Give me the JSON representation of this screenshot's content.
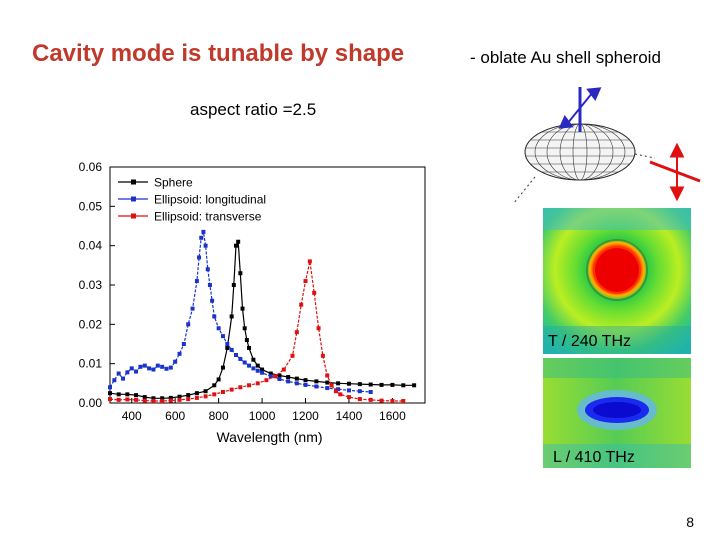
{
  "slide": {
    "title": "Cavity mode is tunable by shape",
    "subtitle": "-  oblate Au shell spheroid",
    "aspect_ratio_label": "aspect ratio =2.5",
    "page_number": "8"
  },
  "field_maps": {
    "top_label": "T / 240 THz",
    "bottom_label": "L / 410 THz"
  },
  "colors": {
    "title": "#c0392b",
    "sphere": "#000000",
    "longitudinal": "#1a33cc",
    "transverse": "#e01010",
    "arrow_blue": "#2a2ac0",
    "arrow_red": "#e01010"
  },
  "chart_data": {
    "type": "line",
    "title": "",
    "xlabel": "Wavelength (nm)",
    "ylabel": "",
    "xlim": [
      300,
      1750
    ],
    "ylim": [
      0,
      0.06
    ],
    "xticks": [
      400,
      600,
      800,
      1000,
      1200,
      1400,
      1600
    ],
    "yticks": [
      0.0,
      0.01,
      0.02,
      0.03,
      0.04,
      0.05,
      0.06
    ],
    "ytick_labels": [
      "0.00",
      "0.01",
      "0.02",
      "0.03",
      "0.04",
      "0.05",
      "0.06"
    ],
    "legend_position": "top-left",
    "series": [
      {
        "name": "Sphere",
        "color": "#000000",
        "x": [
          300,
          340,
          380,
          420,
          460,
          500,
          540,
          580,
          620,
          660,
          700,
          740,
          780,
          800,
          820,
          840,
          860,
          870,
          880,
          890,
          900,
          910,
          920,
          930,
          940,
          960,
          980,
          1000,
          1040,
          1080,
          1120,
          1160,
          1200,
          1250,
          1300,
          1350,
          1400,
          1450,
          1500,
          1550,
          1600,
          1650,
          1700
        ],
        "y": [
          0.0025,
          0.0022,
          0.0022,
          0.002,
          0.0015,
          0.0012,
          0.0012,
          0.0013,
          0.0016,
          0.002,
          0.0025,
          0.003,
          0.0045,
          0.006,
          0.009,
          0.014,
          0.022,
          0.03,
          0.04,
          0.041,
          0.033,
          0.024,
          0.019,
          0.016,
          0.014,
          0.011,
          0.0095,
          0.0085,
          0.0075,
          0.007,
          0.0066,
          0.0062,
          0.0058,
          0.0055,
          0.0052,
          0.005,
          0.0049,
          0.0048,
          0.0047,
          0.0046,
          0.0046,
          0.0045,
          0.0045
        ]
      },
      {
        "name": "Ellipsoid: longitudinal",
        "color": "#1a33cc",
        "x": [
          300,
          320,
          340,
          360,
          380,
          400,
          420,
          440,
          460,
          480,
          500,
          520,
          540,
          560,
          580,
          600,
          620,
          640,
          660,
          680,
          700,
          710,
          720,
          730,
          740,
          750,
          760,
          770,
          780,
          800,
          820,
          840,
          860,
          880,
          900,
          920,
          940,
          960,
          980,
          1000,
          1040,
          1080,
          1120,
          1160,
          1200,
          1250,
          1300,
          1350,
          1400,
          1450,
          1500
        ],
        "y": [
          0.004,
          0.0058,
          0.0075,
          0.0062,
          0.0078,
          0.0088,
          0.008,
          0.0092,
          0.0095,
          0.0088,
          0.0085,
          0.0095,
          0.0092,
          0.0087,
          0.009,
          0.0105,
          0.0125,
          0.015,
          0.02,
          0.024,
          0.031,
          0.037,
          0.042,
          0.0435,
          0.04,
          0.034,
          0.03,
          0.026,
          0.022,
          0.019,
          0.017,
          0.015,
          0.0135,
          0.0122,
          0.0112,
          0.0103,
          0.0095,
          0.0088,
          0.0082,
          0.0077,
          0.0068,
          0.0061,
          0.0055,
          0.005,
          0.0046,
          0.0042,
          0.0038,
          0.0035,
          0.0032,
          0.003,
          0.0028
        ]
      },
      {
        "name": "Ellipsoid: transverse",
        "color": "#e01010",
        "x": [
          300,
          340,
          380,
          420,
          460,
          500,
          540,
          580,
          620,
          660,
          700,
          740,
          780,
          820,
          860,
          900,
          940,
          980,
          1020,
          1060,
          1100,
          1140,
          1160,
          1180,
          1200,
          1220,
          1240,
          1260,
          1280,
          1300,
          1320,
          1340,
          1360,
          1400,
          1450,
          1500,
          1550,
          1600,
          1650
        ],
        "y": [
          0.001,
          0.0008,
          0.0009,
          0.0008,
          0.0006,
          0.0005,
          0.0005,
          0.0006,
          0.0008,
          0.001,
          0.0013,
          0.0017,
          0.0022,
          0.0028,
          0.0034,
          0.004,
          0.0045,
          0.005,
          0.0058,
          0.0068,
          0.0085,
          0.012,
          0.018,
          0.025,
          0.031,
          0.036,
          0.028,
          0.019,
          0.012,
          0.007,
          0.0045,
          0.003,
          0.0022,
          0.0015,
          0.001,
          0.0008,
          0.0006,
          0.0005,
          0.0005
        ]
      }
    ]
  }
}
